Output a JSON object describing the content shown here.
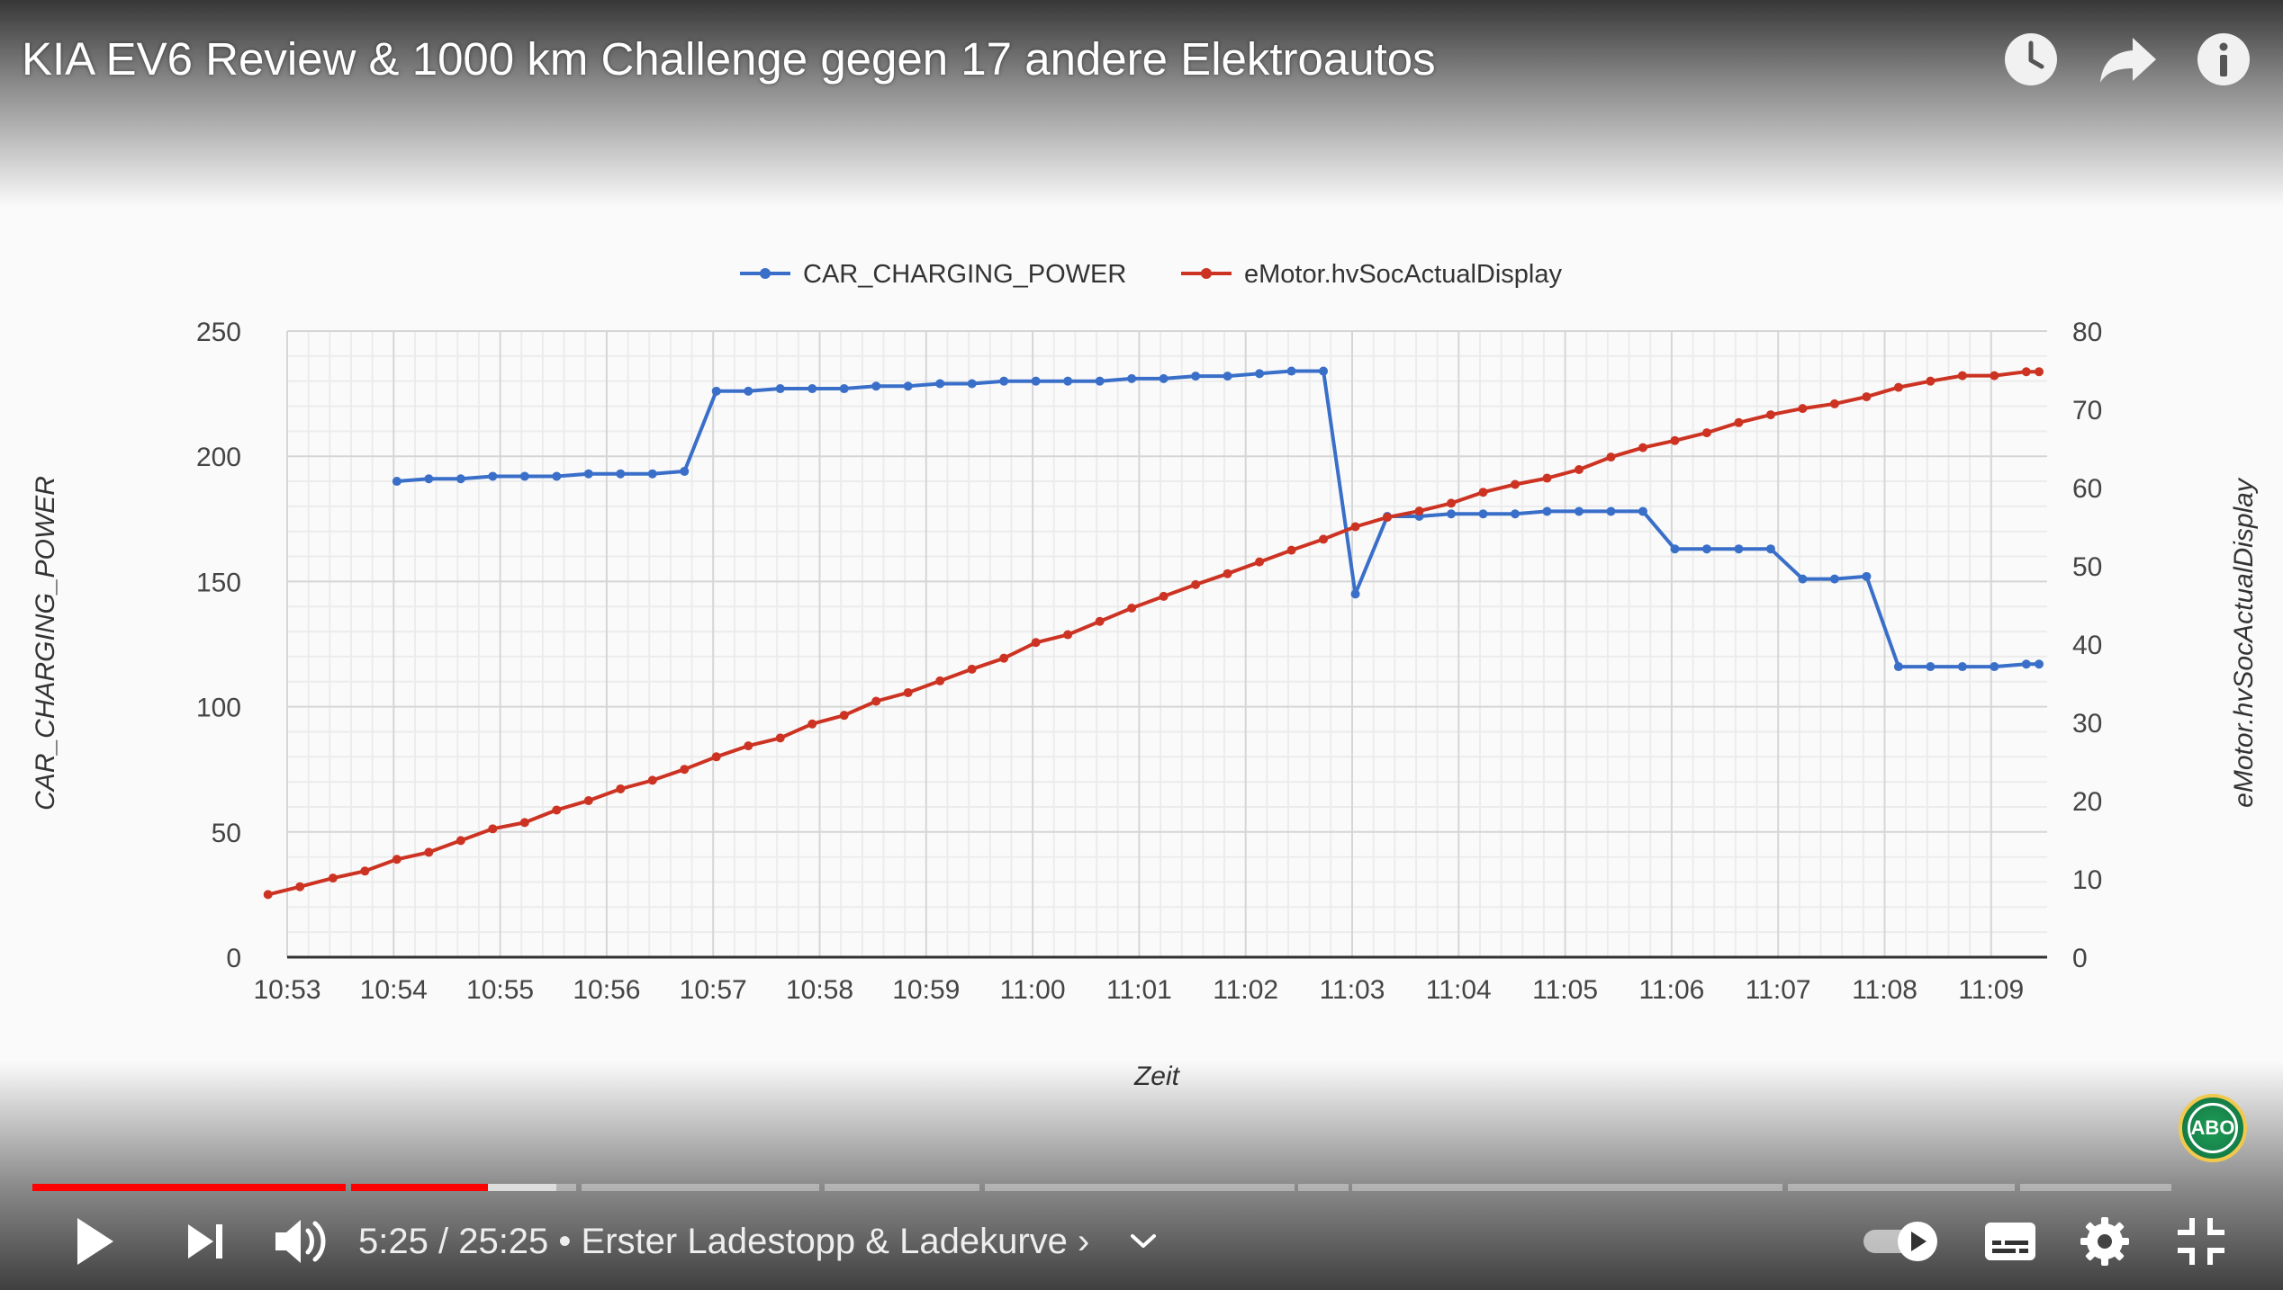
{
  "video": {
    "title": "KIA EV6 Review & 1000 km Challenge gegen 17 andere Elektroautos"
  },
  "top_icons": [
    "clock-icon",
    "share-icon",
    "info-icon"
  ],
  "controls": {
    "current_time": "5:25",
    "duration": "25:25",
    "separator": " / ",
    "chapter_dot": " • ",
    "chapter": "Erster Ladestopp & Ladekurve",
    "chapter_chevron": "›",
    "played_fraction": 0.213,
    "buffered_fraction": 0.245
  },
  "channel_badge": "ABO",
  "colors": {
    "played": "#ff0000",
    "series_power": "#3a6fc9",
    "series_soc": "#cc3322"
  },
  "chart_data": {
    "type": "line",
    "xlabel": "Zeit",
    "ylabel": "CAR_CHARGING_POWER",
    "y2label": "eMotor.hvSocActualDisplay",
    "x_ticks": [
      "10:53",
      "10:54",
      "10:55",
      "10:56",
      "10:57",
      "10:58",
      "10:59",
      "11:00",
      "11:01",
      "11:02",
      "11:03",
      "11:04",
      "11:05",
      "11:06",
      "11:07",
      "11:08",
      "11:09"
    ],
    "x_range_min": [
      0,
      16.45
    ],
    "ylim": [
      0,
      250
    ],
    "y_ticks": [
      0,
      50,
      100,
      150,
      200,
      250
    ],
    "y2lim": [
      0,
      80
    ],
    "y2_ticks": [
      0,
      10,
      20,
      30,
      40,
      50,
      60,
      70,
      80
    ],
    "grid": true,
    "legend_position": "top",
    "series": [
      {
        "name": "CAR_CHARGING_POWER",
        "axis": "left",
        "x": [
          1.03,
          1.33,
          1.63,
          1.93,
          2.23,
          2.53,
          2.83,
          3.13,
          3.43,
          3.73,
          4.03,
          4.33,
          4.63,
          4.93,
          5.23,
          5.53,
          5.83,
          6.13,
          6.43,
          6.73,
          7.03,
          7.33,
          7.63,
          7.93,
          8.23,
          8.53,
          8.83,
          9.13,
          9.43,
          9.73,
          10.03,
          10.33,
          10.63,
          10.93,
          11.23,
          11.53,
          11.83,
          12.13,
          12.43,
          12.73,
          13.03,
          13.33,
          13.63,
          13.93,
          14.23,
          14.53,
          14.83,
          15.13,
          15.43,
          15.73,
          16.03,
          16.33,
          16.45
        ],
        "y": [
          190,
          191,
          191,
          192,
          192,
          192,
          193,
          193,
          193,
          194,
          226,
          226,
          227,
          227,
          227,
          228,
          228,
          229,
          229,
          230,
          230,
          230,
          230,
          231,
          231,
          232,
          232,
          233,
          234,
          234,
          145,
          176,
          176,
          177,
          177,
          177,
          178,
          178,
          178,
          178,
          163,
          163,
          163,
          163,
          151,
          151,
          152,
          116,
          116,
          116,
          116,
          117,
          117
        ]
      },
      {
        "name": "eMotor.hvSocActualDisplay",
        "axis": "right",
        "x": [
          -0.18,
          0.12,
          0.43,
          0.73,
          1.03,
          1.33,
          1.63,
          1.93,
          2.23,
          2.53,
          2.83,
          3.13,
          3.43,
          3.73,
          4.03,
          4.33,
          4.63,
          4.93,
          5.23,
          5.53,
          5.83,
          6.13,
          6.43,
          6.73,
          7.03,
          7.33,
          7.63,
          7.93,
          8.23,
          8.53,
          8.83,
          9.13,
          9.43,
          9.73,
          10.03,
          10.33,
          10.63,
          10.93,
          11.23,
          11.53,
          11.83,
          12.13,
          12.43,
          12.73,
          13.03,
          13.33,
          13.63,
          13.93,
          14.23,
          14.53,
          14.83,
          15.13,
          15.43,
          15.73,
          16.03,
          16.33,
          16.45
        ],
        "y": [
          8,
          9,
          10.1,
          11,
          12.5,
          13.4,
          14.9,
          16.4,
          17.2,
          18.8,
          20,
          21.5,
          22.6,
          24,
          25.6,
          27,
          28,
          29.8,
          30.9,
          32.7,
          33.8,
          35.3,
          36.8,
          38.2,
          40.2,
          41.2,
          42.9,
          44.6,
          46.1,
          47.6,
          49,
          50.5,
          52,
          53.4,
          55,
          56.2,
          57,
          58,
          59.4,
          60.4,
          61.2,
          62.3,
          63.9,
          65.1,
          66,
          67,
          68.3,
          69.3,
          70.1,
          70.7,
          71.6,
          72.8,
          73.6,
          74.3,
          74.3,
          74.8,
          74.8
        ]
      }
    ]
  }
}
